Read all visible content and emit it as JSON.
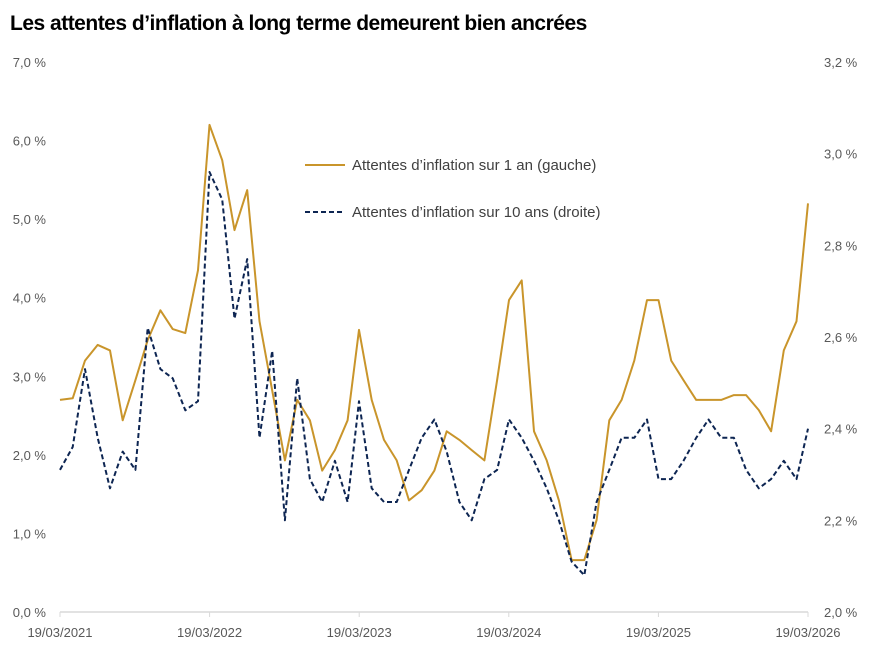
{
  "chart_data": {
    "type": "line",
    "title": "Les attentes d’inflation à long terme demeurent bien ancrées",
    "colors": {
      "one_year": "#C9952B",
      "ten_year": "#0D2552",
      "axis": "#D9D9D9"
    },
    "x_ticks": [
      "19/03/2021",
      "19/03/2022",
      "19/03/2023",
      "19/03/2024",
      "19/03/2025",
      "19/03/2026"
    ],
    "x_range": [
      "2021-03-19",
      "2026-03-19"
    ],
    "y_left": {
      "range": [
        0,
        7
      ],
      "ticks": [
        "0,0 %",
        "1,0 %",
        "2,0 %",
        "3,0 %",
        "4,0 %",
        "5,0 %",
        "6,0 %",
        "7,0 %"
      ]
    },
    "y_right": {
      "range": [
        2.0,
        3.2
      ],
      "ticks": [
        "2,0 %",
        "2,2 %",
        "2,4 %",
        "2,6 %",
        "2,8 %",
        "3,0 %",
        "3,2 %"
      ]
    },
    "grid": false,
    "legend_position": "top-center",
    "x": [
      "2021-03",
      "2021-04",
      "2021-05",
      "2021-06",
      "2021-07",
      "2021-08",
      "2021-09",
      "2021-10",
      "2021-11",
      "2021-12",
      "2022-01",
      "2022-02",
      "2022-03",
      "2022-04",
      "2022-05",
      "2022-06",
      "2022-07",
      "2022-08",
      "2022-09",
      "2022-10",
      "2022-11",
      "2022-12",
      "2023-01",
      "2023-02",
      "2023-03",
      "2023-04",
      "2023-05",
      "2023-06",
      "2023-07",
      "2023-08",
      "2023-09",
      "2023-10",
      "2023-11",
      "2023-12",
      "2024-01",
      "2024-02",
      "2024-03",
      "2024-04",
      "2024-05",
      "2024-06",
      "2024-07",
      "2024-08",
      "2024-09",
      "2024-10",
      "2024-11",
      "2024-12",
      "2025-01",
      "2025-02",
      "2025-03",
      "2025-04",
      "2025-05",
      "2025-06",
      "2025-07",
      "2025-08",
      "2025-09",
      "2025-10",
      "2025-11",
      "2025-12",
      "2026-01",
      "2026-02",
      "2026-03"
    ],
    "series": [
      {
        "name": "Attentes d’inflation sur 1 an (gauche)",
        "axis": "left",
        "style": "solid",
        "values": [
          2.7,
          2.72,
          3.2,
          3.4,
          3.33,
          2.44,
          2.95,
          3.46,
          3.84,
          3.6,
          3.55,
          4.35,
          6.2,
          5.75,
          4.86,
          5.37,
          3.7,
          2.82,
          1.93,
          2.7,
          2.44,
          1.8,
          2.06,
          2.44,
          3.59,
          2.7,
          2.19,
          1.93,
          1.42,
          1.55,
          1.8,
          2.3,
          2.19,
          2.06,
          1.93,
          2.95,
          3.97,
          4.22,
          2.3,
          1.93,
          1.42,
          0.66,
          0.66,
          1.17,
          2.44,
          2.7,
          3.2,
          3.97,
          3.97,
          3.2,
          2.95,
          2.7,
          2.7,
          2.7,
          2.76,
          2.76,
          2.57,
          2.3,
          3.33,
          3.7,
          5.2
        ]
      },
      {
        "name": "Attentes d’inflation sur 10 ans (droite)",
        "axis": "right",
        "style": "dashed",
        "values": [
          2.31,
          2.36,
          2.53,
          2.38,
          2.27,
          2.35,
          2.31,
          2.62,
          2.53,
          2.51,
          2.44,
          2.46,
          2.96,
          2.9,
          2.64,
          2.77,
          2.38,
          2.57,
          2.2,
          2.51,
          2.29,
          2.24,
          2.33,
          2.24,
          2.46,
          2.27,
          2.24,
          2.24,
          2.31,
          2.38,
          2.42,
          2.35,
          2.24,
          2.2,
          2.29,
          2.31,
          2.42,
          2.38,
          2.33,
          2.27,
          2.2,
          2.11,
          2.08,
          2.24,
          2.31,
          2.38,
          2.38,
          2.42,
          2.29,
          2.29,
          2.33,
          2.38,
          2.42,
          2.38,
          2.38,
          2.31,
          2.27,
          2.29,
          2.33,
          2.29,
          2.4
        ]
      }
    ]
  }
}
